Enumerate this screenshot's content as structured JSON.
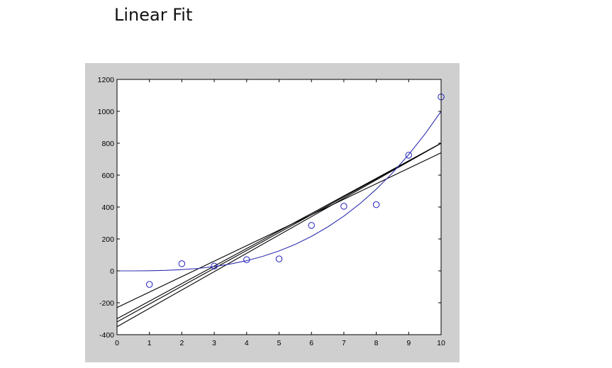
{
  "title": "Linear Fit",
  "chart_data": {
    "type": "scatter",
    "title": "",
    "xlabel": "",
    "ylabel": "",
    "xlim": [
      0,
      10
    ],
    "ylim": [
      -400,
      1200
    ],
    "x_ticks": [
      "0",
      "1",
      "2",
      "3",
      "4",
      "5",
      "6",
      "7",
      "8",
      "9",
      "10"
    ],
    "y_ticks": [
      "-400",
      "-200",
      "0",
      "200",
      "400",
      "600",
      "800",
      "1000",
      "1200"
    ],
    "grid": false,
    "legend": "none",
    "points": {
      "marker": "circle-open",
      "color": "#2020c0",
      "x": [
        1,
        2,
        3,
        4,
        5,
        6,
        7,
        8,
        9,
        10
      ],
      "y": [
        -85,
        45,
        30,
        70,
        75,
        285,
        405,
        415,
        725,
        1090
      ]
    },
    "fit_lines": {
      "color": "#000000",
      "lines": [
        {
          "intercept": -300,
          "slope": 110
        },
        {
          "intercept": -320,
          "slope": 112
        },
        {
          "intercept": -350,
          "slope": 115
        },
        {
          "intercept": -230,
          "slope": 97
        }
      ]
    },
    "curve": {
      "color": "#3030b0",
      "x": [
        0,
        0.5,
        1,
        1.5,
        2,
        2.5,
        3,
        3.5,
        4,
        4.5,
        5,
        5.5,
        6,
        6.5,
        7,
        7.5,
        8,
        8.5,
        9,
        9.5,
        10
      ],
      "y": [
        0,
        0,
        1,
        3,
        8,
        15,
        27,
        43,
        64,
        91,
        125,
        166,
        216,
        275,
        343,
        422,
        512,
        614,
        729,
        857,
        1000
      ]
    }
  }
}
